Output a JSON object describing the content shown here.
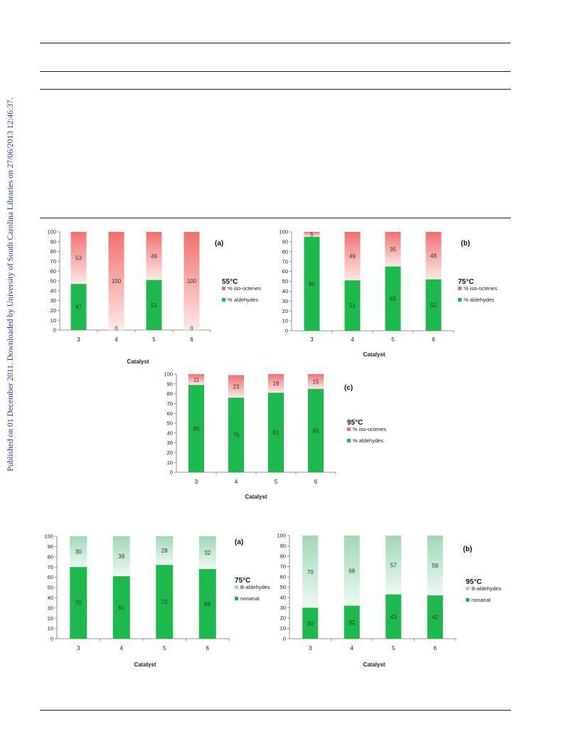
{
  "sidebar_text": "Published on 01 December 2011. Downloaded by University of South Carolina Libraries on 27/06/2013 12:46:37.",
  "colors": {
    "aldehydes": "#1eb94e",
    "iso_octenes": "#f07070",
    "iso_octenes_fade": "#fde8e8",
    "b_aldehydes": "#9fd8b6",
    "b_aldehydes_fade": "#eef8f3"
  },
  "chart_data": [
    {
      "id": "fig1a",
      "type": "bar",
      "stacked": true,
      "panel": "(a)",
      "temperature": "55°C",
      "xlabel": "Catalyst",
      "categories": [
        "3",
        "4",
        "5",
        "6"
      ],
      "ylim": [
        0,
        100
      ],
      "yticks": [
        "0",
        "10",
        "20",
        "30",
        "40",
        "50",
        "60",
        "70",
        "80",
        "90",
        "100"
      ],
      "series": [
        {
          "name": "% aldehydes",
          "values": [
            47,
            0,
            51,
            0
          ],
          "labels": [
            "47",
            "0",
            "51",
            "0"
          ]
        },
        {
          "name": "% iso-octenes",
          "values": [
            53,
            100,
            49,
            100
          ],
          "labels": [
            "53",
            "100",
            "49",
            "100"
          ]
        }
      ]
    },
    {
      "id": "fig1b",
      "type": "bar",
      "stacked": true,
      "panel": "(b)",
      "temperature": "75°C",
      "xlabel": "Catalyst",
      "categories": [
        "3",
        "4",
        "5",
        "6"
      ],
      "ylim": [
        0,
        100
      ],
      "yticks": [
        "0",
        "10",
        "20",
        "30",
        "40",
        "50",
        "60",
        "70",
        "80",
        "90",
        "100"
      ],
      "series": [
        {
          "name": "% aldehydes",
          "values": [
            95,
            51,
            65,
            52
          ],
          "labels": [
            "95",
            "51",
            "65",
            "52"
          ]
        },
        {
          "name": "% iso-octenes",
          "values": [
            5,
            49,
            35,
            48
          ],
          "labels": [
            "5",
            "49",
            "35",
            "48"
          ]
        }
      ]
    },
    {
      "id": "fig1c",
      "type": "bar",
      "stacked": true,
      "panel": "(c)",
      "temperature": "95°C",
      "xlabel": "Catalyst",
      "categories": [
        "3",
        "4",
        "5",
        "6"
      ],
      "ylim": [
        0,
        100
      ],
      "yticks": [
        "0",
        "10",
        "20",
        "30",
        "40",
        "50",
        "60",
        "70",
        "80",
        "90",
        "100"
      ],
      "series": [
        {
          "name": "% aldehydes",
          "values": [
            89,
            76,
            81,
            85
          ],
          "labels": [
            "89",
            "76",
            "81",
            "85"
          ]
        },
        {
          "name": "% iso-octenes",
          "values": [
            11,
            23,
            19,
            15
          ],
          "labels": [
            "11",
            "23",
            "19",
            "15"
          ]
        }
      ]
    },
    {
      "id": "fig2a",
      "type": "bar",
      "stacked": true,
      "panel": "(a)",
      "temperature": "75°C",
      "xlabel": "Catalyst",
      "categories": [
        "3",
        "4",
        "5",
        "6"
      ],
      "ylim": [
        0,
        100
      ],
      "yticks": [
        "0",
        "10",
        "20",
        "30",
        "40",
        "50",
        "60",
        "70",
        "80",
        "90",
        "100"
      ],
      "series": [
        {
          "name": "nonanal",
          "values": [
            70,
            61,
            72,
            68
          ],
          "labels": [
            "70",
            "61",
            "72",
            "68"
          ]
        },
        {
          "name": "B-aldehydes",
          "values": [
            30,
            39,
            28,
            32
          ],
          "labels": [
            "30",
            "39",
            "28",
            "32"
          ]
        }
      ]
    },
    {
      "id": "fig2b",
      "type": "bar",
      "stacked": true,
      "panel": "(b)",
      "temperature": "95°C",
      "xlabel": "Catalyst",
      "categories": [
        "3",
        "4",
        "5",
        "6"
      ],
      "ylim": [
        0,
        100
      ],
      "yticks": [
        "0",
        "10",
        "20",
        "30",
        "40",
        "50",
        "60",
        "70",
        "80",
        "90",
        "100"
      ],
      "series": [
        {
          "name": "nonanal",
          "values": [
            30,
            32,
            43,
            42
          ],
          "labels": [
            "30",
            "32",
            "43",
            "42"
          ]
        },
        {
          "name": "B-aldehydes",
          "values": [
            70,
            68,
            57,
            58
          ],
          "labels": [
            "70",
            "68",
            "57",
            "58"
          ]
        }
      ]
    }
  ]
}
